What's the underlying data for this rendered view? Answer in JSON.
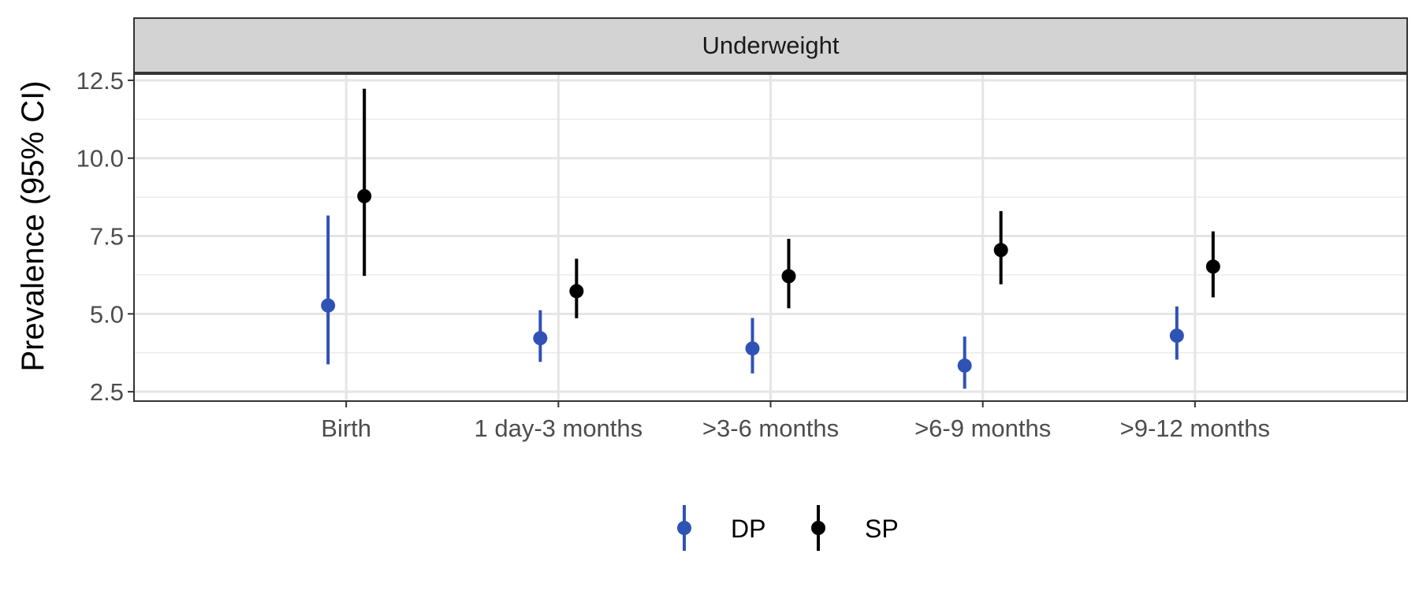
{
  "chart_data": {
    "type": "scatter",
    "subtype": "point-range",
    "facet_label": "Underweight",
    "ylabel": "Prevalence (95% CI)",
    "xlabel": "",
    "ylim": [
      2.2,
      12.7
    ],
    "yticks": [
      "2.5",
      "5.0",
      "7.5",
      "10.0",
      "12.5"
    ],
    "ytick_values": [
      2.5,
      5.0,
      7.5,
      10.0,
      12.5
    ],
    "categories": [
      "Birth",
      "1 day-3 months",
      ">3-6 months",
      ">6-9 months",
      ">9-12 months"
    ],
    "grid": true,
    "legend_position": "bottom",
    "series": [
      {
        "name": "DP",
        "color": "#2f52b5",
        "values": [
          5.27,
          4.22,
          3.89,
          3.34,
          4.3
        ],
        "lower": [
          3.38,
          3.46,
          3.09,
          2.6,
          3.53
        ],
        "upper": [
          8.16,
          5.12,
          4.87,
          4.27,
          5.24
        ]
      },
      {
        "name": "SP",
        "color": "#000000",
        "values": [
          8.78,
          5.73,
          6.21,
          7.05,
          6.52
        ],
        "lower": [
          6.22,
          4.86,
          5.18,
          5.95,
          5.53
        ],
        "upper": [
          12.23,
          6.77,
          7.41,
          8.3,
          7.65
        ]
      }
    ]
  }
}
